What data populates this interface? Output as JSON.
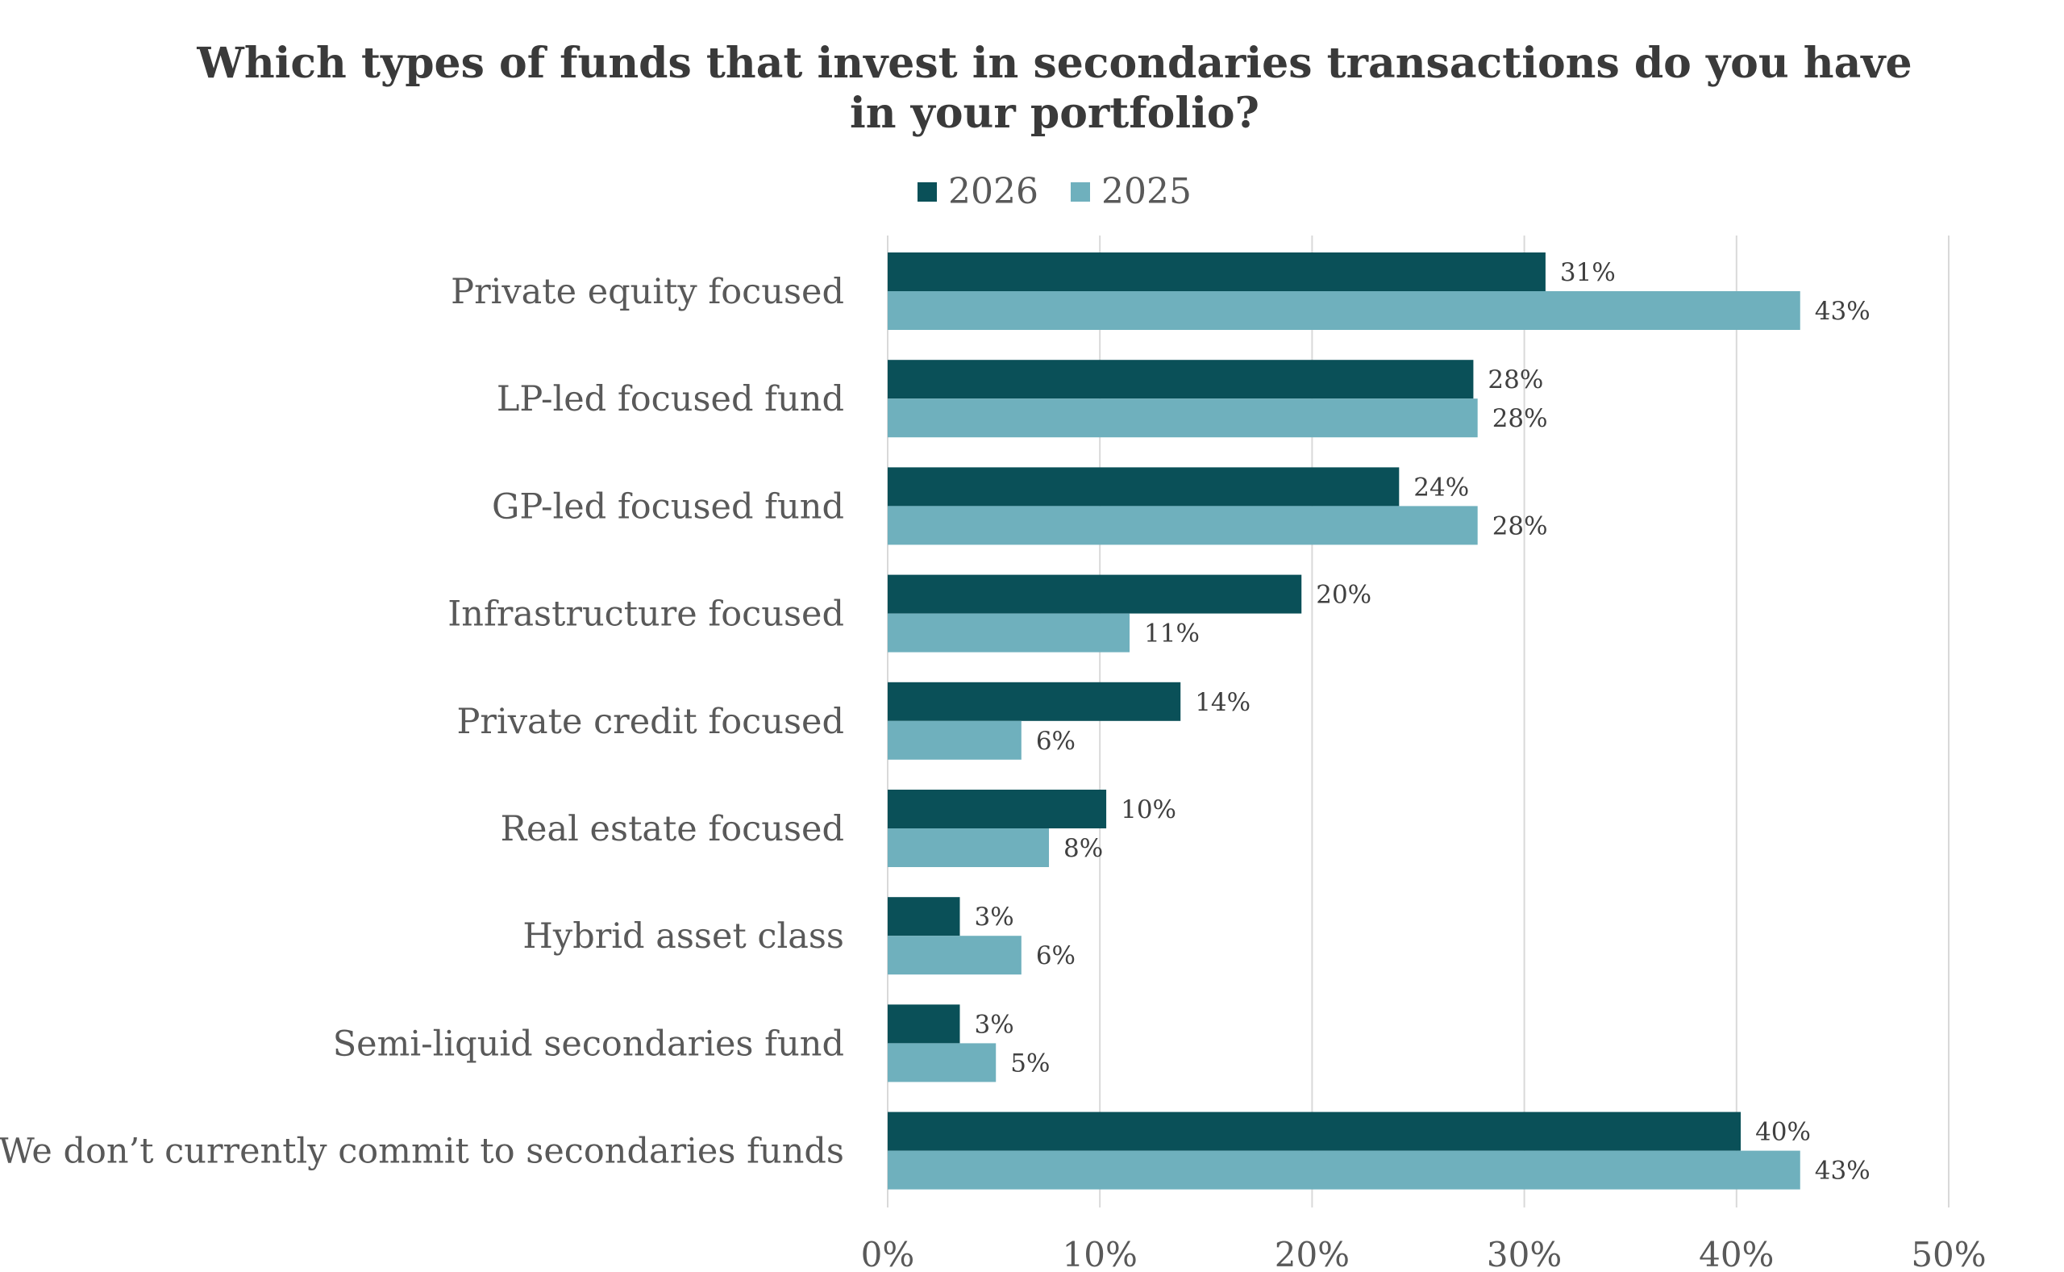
{
  "chart_data": {
    "type": "bar",
    "orientation": "horizontal",
    "title": "Which types of funds that invest in secondaries transactions do you have in your portfolio?",
    "title_lines": [
      "Which types of funds that invest in secondaries transactions do you have",
      "in your portfolio?"
    ],
    "categories": [
      "Private equity focused",
      "LP-led focused fund",
      "GP-led focused fund",
      "Infrastructure focused",
      "Private credit focused",
      "Real estate focused",
      "Hybrid asset class",
      "Semi-liquid secondaries fund",
      "We don’t currently commit to secondaries funds"
    ],
    "series": [
      {
        "name": "2026",
        "color": "#0a5058",
        "values": [
          31.0,
          27.6,
          24.1,
          19.5,
          13.8,
          10.3,
          3.4,
          3.4,
          40.2
        ],
        "labels": [
          "31%",
          "28%",
          "24%",
          "20%",
          "14%",
          "10%",
          "3%",
          "3%",
          "40%"
        ]
      },
      {
        "name": "2025",
        "color": "#6fb0bd",
        "values": [
          43.0,
          27.8,
          27.8,
          11.4,
          6.3,
          7.6,
          6.3,
          5.1,
          43.0
        ],
        "labels": [
          "43%",
          "28%",
          "28%",
          "11%",
          "6%",
          "8%",
          "6%",
          "5%",
          "43%"
        ]
      }
    ],
    "xlim": [
      0,
      50
    ],
    "xticks": [
      0,
      10,
      20,
      30,
      40,
      50
    ],
    "xtick_labels": [
      "0%",
      "10%",
      "20%",
      "30%",
      "40%",
      "50%"
    ],
    "grid": true,
    "legend_position": "top-center",
    "xlabel": "",
    "ylabel": ""
  }
}
